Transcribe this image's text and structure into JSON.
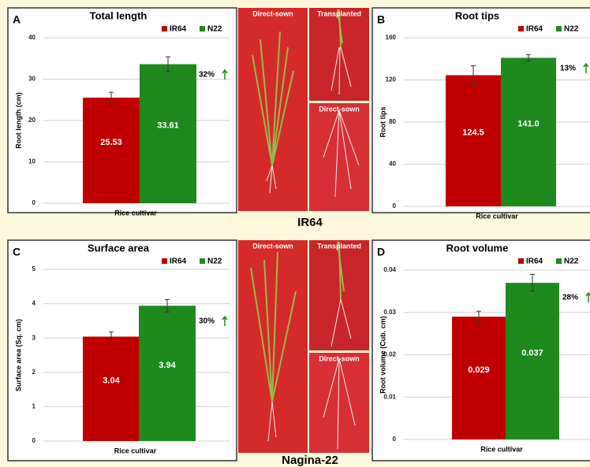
{
  "chart_data": [
    {
      "type": "bar",
      "panel": "A",
      "title": "Total length",
      "ylabel": "Root length (cm)",
      "xlabel": "Rice cultivar",
      "categories": [
        "IR64",
        "N22"
      ],
      "colors": [
        "#c00000",
        "#1e8a1e"
      ],
      "values": [
        25.53,
        33.61
      ],
      "errors": [
        1.3,
        1.8
      ],
      "ylim": [
        0,
        40
      ],
      "yticks": [
        0,
        10,
        20,
        30,
        40
      ],
      "grid": true,
      "annotation": "32%"
    },
    {
      "type": "bar",
      "panel": "B",
      "title": "Root tips",
      "ylabel": "Root tips",
      "xlabel": "Rice cultivar",
      "categories": [
        "IR64",
        "N22"
      ],
      "colors": [
        "#c00000",
        "#1e8a1e"
      ],
      "values": [
        124.5,
        141.0
      ],
      "value_labels": [
        "124.5",
        "141.0"
      ],
      "errors": [
        9,
        3
      ],
      "ylim": [
        0,
        160
      ],
      "yticks": [
        0,
        40,
        80,
        120,
        160
      ],
      "grid": true,
      "annotation": "13%"
    },
    {
      "type": "bar",
      "panel": "C",
      "title": "Surface area",
      "ylabel": "Surface area (Sq. cm)",
      "xlabel": "Rice cultivar",
      "categories": [
        "IR64",
        "N22"
      ],
      "colors": [
        "#c00000",
        "#1e8a1e"
      ],
      "values": [
        3.04,
        3.94
      ],
      "errors": [
        0.14,
        0.18
      ],
      "ylim": [
        0,
        5
      ],
      "yticks": [
        0,
        1,
        2,
        3,
        4,
        5
      ],
      "grid": true,
      "annotation": "30%"
    },
    {
      "type": "bar",
      "panel": "D",
      "title": "Root volume",
      "ylabel": "Root volume (Cub. cm)",
      "xlabel": "Rice cultivar",
      "categories": [
        "IR64",
        "N22"
      ],
      "colors": [
        "#c00000",
        "#1e8a1e"
      ],
      "values": [
        0.029,
        0.037
      ],
      "errors": [
        0.0013,
        0.002
      ],
      "ylim": [
        0,
        0.04
      ],
      "yticks": [
        0,
        0.01,
        0.02,
        0.03,
        0.04
      ],
      "grid": true,
      "annotation": "28%"
    }
  ],
  "photos": {
    "top_label": "IR64",
    "bottom_label": "Nagina-22",
    "top_left": "Direct-sown",
    "top_right_upper": "Transplanted",
    "top_right_lower": "Direct-sown",
    "bottom_left": "Direct-sown",
    "bottom_right_upper": "Transplanted",
    "bottom_right_lower": "Direct-sown"
  }
}
